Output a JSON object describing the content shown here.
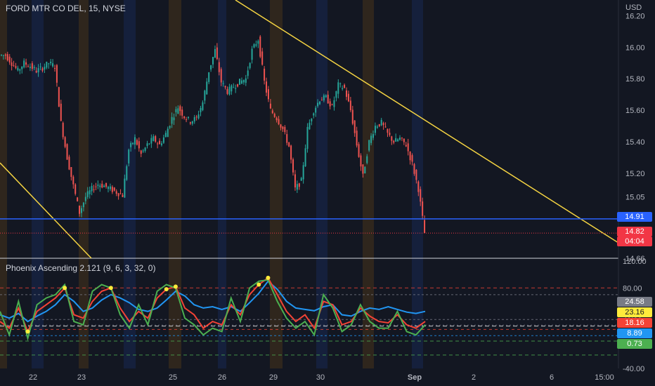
{
  "header": {
    "symbol_title": "FORD MTR CO DEL, 15, NYSE",
    "currency": "USD"
  },
  "indicator": {
    "title": "Phoenix Ascending 2.121 (9, 6, 3, 32, 0)"
  },
  "price_tags": {
    "level": "14.91",
    "last": "14.82",
    "countdown": "04:04"
  },
  "indicator_tags": [
    "24.58",
    "23.16",
    "18.16",
    "8.89",
    "0.73"
  ],
  "colors": {
    "background": "#131722",
    "up": "#26a69a",
    "down": "#ef5350",
    "trendline": "#f5d442",
    "level_line": "#2962ff",
    "last_price": "#f23645",
    "osc_blue": "#2196f3",
    "osc_red": "#f44336",
    "osc_green": "#4caf50",
    "osc_yellow": "#ffeb3b"
  },
  "chart_data": [
    {
      "type": "candlestick",
      "title": "FORD MTR CO DEL, 15, NYSE",
      "x_ticks": [
        "22",
        "23",
        "25",
        "26",
        "29",
        "30",
        "Sep",
        "2",
        "6",
        "15:00"
      ],
      "y_ticks": [
        16.2,
        16.0,
        15.8,
        15.6,
        15.4,
        15.2,
        15.05,
        14.66
      ],
      "ylim": [
        14.66,
        16.3
      ],
      "close_path": [
        15.95,
        15.9,
        15.85,
        15.9,
        15.88,
        15.85,
        15.87,
        15.9,
        15.88,
        15.52,
        15.3,
        15.12,
        14.95,
        15.05,
        15.1,
        15.13,
        15.12,
        15.1,
        15.08,
        15.06,
        15.35,
        15.42,
        15.32,
        15.38,
        15.42,
        15.38,
        15.45,
        15.55,
        15.62,
        15.56,
        15.53,
        15.55,
        15.65,
        15.85,
        15.98,
        15.78,
        15.72,
        15.75,
        15.78,
        15.8,
        15.98,
        16.05,
        15.78,
        15.6,
        15.55,
        15.48,
        15.37,
        15.1,
        15.15,
        15.48,
        15.6,
        15.67,
        15.68,
        15.62,
        15.76,
        15.74,
        15.6,
        15.38,
        15.18,
        15.4,
        15.5,
        15.52,
        15.45,
        15.4,
        15.42,
        15.38,
        15.26,
        15.1,
        14.82
      ],
      "horizontal_level": 14.91,
      "last_price": 14.82,
      "trendlines": [
        {
          "from": [
            "start",
            15.28
          ],
          "to": [
            "23",
            14.66
          ]
        },
        {
          "from": [
            "26",
            16.27
          ],
          "to": [
            "15:00",
            14.7
          ]
        }
      ]
    },
    {
      "type": "line",
      "title": "Phoenix Ascending 2.121 (9, 6, 3, 32, 0)",
      "y_ticks": [
        120.0,
        80.0,
        40.0,
        0.0,
        -40.0
      ],
      "ylim": [
        -40,
        120
      ],
      "reference_levels": [
        80,
        70,
        33,
        24.58,
        23.16,
        18.16,
        8.89,
        0.73,
        -20
      ],
      "series": [
        {
          "name": "",
          "color": "#2196f3",
          "values": [
            40,
            35,
            42,
            30,
            38,
            45,
            55,
            70,
            60,
            45,
            50,
            62,
            70,
            65,
            58,
            48,
            45,
            50,
            62,
            75,
            68,
            55,
            50,
            52,
            48,
            52,
            45,
            58,
            72,
            90,
            78,
            60,
            50,
            48,
            46,
            52,
            55,
            40,
            38,
            45,
            50,
            48,
            52,
            48,
            44,
            42,
            45
          ]
        },
        {
          "name": "",
          "color": "#f44336",
          "values": [
            30,
            20,
            50,
            15,
            45,
            55,
            65,
            80,
            40,
            35,
            60,
            75,
            80,
            50,
            30,
            45,
            35,
            65,
            78,
            82,
            50,
            40,
            20,
            30,
            25,
            55,
            40,
            70,
            85,
            95,
            70,
            45,
            30,
            40,
            20,
            60,
            55,
            25,
            30,
            50,
            38,
            30,
            28,
            40,
            25,
            20,
            30
          ]
        },
        {
          "name": "",
          "color": "#4caf50",
          "values": [
            45,
            10,
            60,
            5,
            55,
            65,
            70,
            85,
            30,
            25,
            75,
            85,
            80,
            40,
            20,
            55,
            25,
            75,
            85,
            80,
            35,
            25,
            10,
            20,
            15,
            65,
            30,
            80,
            90,
            92,
            60,
            35,
            20,
            30,
            10,
            70,
            50,
            15,
            25,
            55,
            30,
            20,
            20,
            45,
            15,
            10,
            25
          ]
        }
      ]
    }
  ]
}
